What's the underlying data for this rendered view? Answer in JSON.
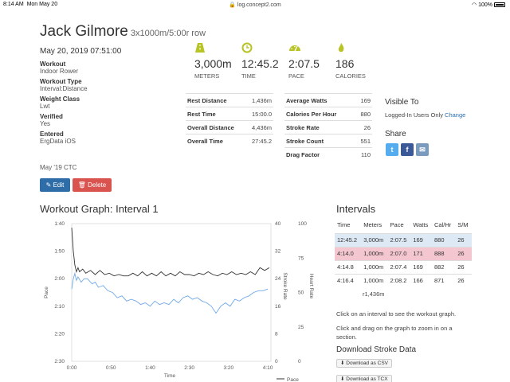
{
  "statusbar": {
    "time": "8:14 AM",
    "date": "Mon May 20",
    "url": "log.concept2.com",
    "battery": "100%"
  },
  "workout": {
    "name": "Jack Gilmore",
    "subtitle": "3x1000m/5:00r row",
    "datetime": "May 20, 2019 07:51:00",
    "fields": [
      {
        "label": "Workout",
        "value": "Indoor Rower"
      },
      {
        "label": "Workout Type",
        "value": "Interval:Distance"
      },
      {
        "label": "Weight Class",
        "value": "Lwt"
      },
      {
        "label": "Verified",
        "value": "Yes"
      },
      {
        "label": "Entered",
        "value": "ErgData iOS"
      }
    ],
    "challenge": "May '19 CTC",
    "edit_label": "Edit",
    "delete_label": "Delete"
  },
  "stats": [
    {
      "icon": "road-icon",
      "value": "3,000m",
      "unit": "METERS"
    },
    {
      "icon": "clock-icon",
      "value": "12:45.2",
      "unit": "TIME"
    },
    {
      "icon": "speedometer-icon",
      "value": "2:07.5",
      "unit": "PACE"
    },
    {
      "icon": "flame-icon",
      "value": "186",
      "unit": "CALORIES"
    }
  ],
  "details_left": [
    {
      "k": "Rest Distance",
      "v": "1,436m"
    },
    {
      "k": "Rest Time",
      "v": "15:00.0"
    },
    {
      "k": "Overall Distance",
      "v": "4,436m"
    },
    {
      "k": "Overall Time",
      "v": "27:45.2"
    }
  ],
  "details_right": [
    {
      "k": "Average Watts",
      "v": "169"
    },
    {
      "k": "Calories Per Hour",
      "v": "880"
    },
    {
      "k": "Stroke Rate",
      "v": "26"
    },
    {
      "k": "Stroke Count",
      "v": "551"
    },
    {
      "k": "Drag Factor",
      "v": "110"
    }
  ],
  "visibility": {
    "heading": "Visible To",
    "value": "Logged-In Users Only",
    "change_label": "Change"
  },
  "share": {
    "heading": "Share"
  },
  "colors": {
    "accent": "#b8c325",
    "edit": "#2f6da8",
    "delete": "#d9534f",
    "twitter": "#55acee",
    "facebook": "#3b5998",
    "email": "#7a9bbd",
    "pace_line": "#333333",
    "rate_line": "#6fa8e8",
    "row_blue": "#dde9f5",
    "row_pink": "#f4c6cf"
  },
  "graph": {
    "title": "Workout Graph: Interval 1",
    "xlabel": "Time",
    "legend_pace": "Pace"
  },
  "chart_data": {
    "type": "line",
    "xlabel": "Time",
    "x_ticks": [
      "0:00",
      "0:50",
      "1:40",
      "2:30",
      "3:20",
      "4:10"
    ],
    "x_tick_values": [
      0,
      50,
      100,
      150,
      200,
      250
    ],
    "xlim": [
      0,
      254
    ],
    "y_left_label": "Pace",
    "y_left_ticks": [
      "1:40",
      "1:50",
      "2:00",
      "2:10",
      "2:20",
      "2:30"
    ],
    "y_left_tick_values": [
      100,
      110,
      120,
      130,
      140,
      150
    ],
    "y_left_lim": [
      100,
      150
    ],
    "y_mid_label": "Stroke Rate",
    "y_mid_ticks": [
      "40",
      "32",
      "24",
      "16",
      "8",
      "0"
    ],
    "y_mid_lim": [
      0,
      40
    ],
    "y_right_label": "Heart Rate",
    "y_right_ticks": [
      "100",
      "75",
      "50",
      "25",
      "0"
    ],
    "y_right_lim": [
      0,
      100
    ],
    "series": [
      {
        "name": "Pace",
        "axis": "left",
        "x": [
          0,
          2,
          4,
          6,
          8,
          10,
          14,
          18,
          24,
          30,
          36,
          42,
          48,
          54,
          60,
          66,
          72,
          78,
          84,
          90,
          96,
          102,
          108,
          114,
          120,
          126,
          132,
          138,
          144,
          150,
          156,
          162,
          168,
          174,
          180,
          186,
          192,
          198,
          204,
          210,
          216,
          222,
          228,
          234,
          240,
          246,
          252
        ],
        "values": [
          101.5,
          110,
          115,
          117.5,
          116,
          117.5,
          116.5,
          118,
          117,
          118.5,
          117,
          118.5,
          118,
          119,
          118.5,
          119,
          119,
          118,
          119,
          117.5,
          119,
          118,
          119,
          117.5,
          119,
          118,
          119,
          117.5,
          118.5,
          118.5,
          119,
          118,
          118.5,
          117.5,
          118.5,
          119,
          118,
          118.5,
          117.5,
          118.5,
          118,
          118.5,
          117.5,
          118.5,
          116,
          117,
          116
        ]
      },
      {
        "name": "Stroke Rate",
        "axis": "mid",
        "x": [
          0,
          2,
          4,
          6,
          8,
          12,
          16,
          20,
          26,
          30,
          34,
          40,
          46,
          52,
          58,
          64,
          70,
          76,
          82,
          88,
          94,
          100,
          106,
          112,
          118,
          124,
          130,
          136,
          142,
          148,
          154,
          160,
          166,
          172,
          178,
          184,
          190,
          196,
          202,
          208,
          214,
          220,
          226,
          232,
          238,
          244,
          250
        ],
        "values": [
          21,
          24,
          25.5,
          23.5,
          24.5,
          23,
          24,
          24,
          22.5,
          23,
          21.5,
          22,
          20.5,
          20,
          18.5,
          19,
          17.5,
          18,
          17.5,
          16.5,
          17,
          16,
          17.5,
          16.5,
          17,
          16.5,
          18,
          17,
          18.5,
          19,
          18,
          18.5,
          17.5,
          17,
          16,
          14,
          16,
          17,
          16,
          18,
          17.5,
          18.5,
          19,
          20,
          20.5,
          20.5,
          21
        ]
      }
    ]
  },
  "intervals": {
    "title": "Intervals",
    "columns": [
      "Time",
      "Meters",
      "Pace",
      "Watts",
      "Cal/Hr",
      "S/M"
    ],
    "rows": [
      {
        "cells": [
          "12:45.2",
          "3,000m",
          "2:07.5",
          "169",
          "880",
          "26"
        ],
        "style": "blue"
      },
      {
        "cells": [
          "4:14.0",
          "1,000m",
          "2:07.0",
          "171",
          "888",
          "26"
        ],
        "style": "pink"
      },
      {
        "cells": [
          "4:14.8",
          "1,000m",
          "2:07.4",
          "169",
          "882",
          "26"
        ],
        "style": ""
      },
      {
        "cells": [
          "4:16.4",
          "1,000m",
          "2:08.2",
          "166",
          "871",
          "26"
        ],
        "style": ""
      }
    ],
    "rest": "r1,436m",
    "help1": "Click on an interval to see the workout graph.",
    "help2": "Click and drag on the graph to zoom in on a section."
  },
  "download": {
    "title": "Download Stroke Data",
    "csv_label": "Download as CSV",
    "tcx_label": "Download as TCX"
  }
}
